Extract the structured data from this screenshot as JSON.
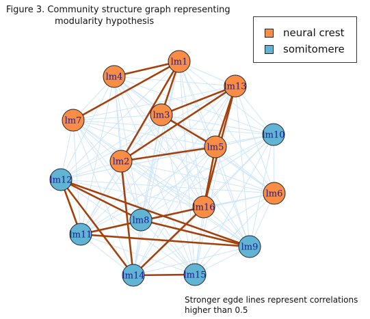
{
  "caption": {
    "line1": "Figure 3.  Community structure graph representing",
    "line2": "modularity hypothesis"
  },
  "legend": [
    {
      "label": "neural crest",
      "color": "#f98d45"
    },
    {
      "label": "somitomere",
      "color": "#62b4d5"
    }
  ],
  "footnote": {
    "line1": "Stronger egde lines represent correlations",
    "line2": "higher than 0.5"
  },
  "colors": {
    "weak_edge": "#cde6fb",
    "strong_edge": "#a5400a",
    "node_border": "#222222"
  },
  "nodes": [
    {
      "id": "lm1",
      "group": "neural crest"
    },
    {
      "id": "lm4",
      "group": "neural crest"
    },
    {
      "id": "lm13",
      "group": "neural crest"
    },
    {
      "id": "lm3",
      "group": "neural crest"
    },
    {
      "id": "lm7",
      "group": "neural crest"
    },
    {
      "id": "lm10",
      "group": "somitomere"
    },
    {
      "id": "lm5",
      "group": "neural crest"
    },
    {
      "id": "lm2",
      "group": "neural crest"
    },
    {
      "id": "lm12",
      "group": "somitomere"
    },
    {
      "id": "lm6",
      "group": "neural crest"
    },
    {
      "id": "lm16",
      "group": "neural crest"
    },
    {
      "id": "lm8",
      "group": "somitomere"
    },
    {
      "id": "lm11",
      "group": "somitomere"
    },
    {
      "id": "lm9",
      "group": "somitomere"
    },
    {
      "id": "lm14",
      "group": "somitomere"
    },
    {
      "id": "lm15",
      "group": "somitomere"
    }
  ],
  "strong_edges": [
    [
      "lm1",
      "lm4"
    ],
    [
      "lm1",
      "lm7"
    ],
    [
      "lm1",
      "lm3"
    ],
    [
      "lm1",
      "lm2"
    ],
    [
      "lm13",
      "lm3"
    ],
    [
      "lm13",
      "lm2"
    ],
    [
      "lm13",
      "lm5"
    ],
    [
      "lm13",
      "lm16"
    ],
    [
      "lm3",
      "lm5"
    ],
    [
      "lm2",
      "lm5"
    ],
    [
      "lm2",
      "lm14"
    ],
    [
      "lm5",
      "lm16"
    ],
    [
      "lm12",
      "lm8"
    ],
    [
      "lm12",
      "lm9"
    ],
    [
      "lm12",
      "lm11"
    ],
    [
      "lm12",
      "lm14"
    ],
    [
      "lm8",
      "lm9"
    ],
    [
      "lm11",
      "lm9"
    ],
    [
      "lm11",
      "lm16"
    ],
    [
      "lm14",
      "lm15"
    ],
    [
      "lm14",
      "lm16"
    ]
  ]
}
